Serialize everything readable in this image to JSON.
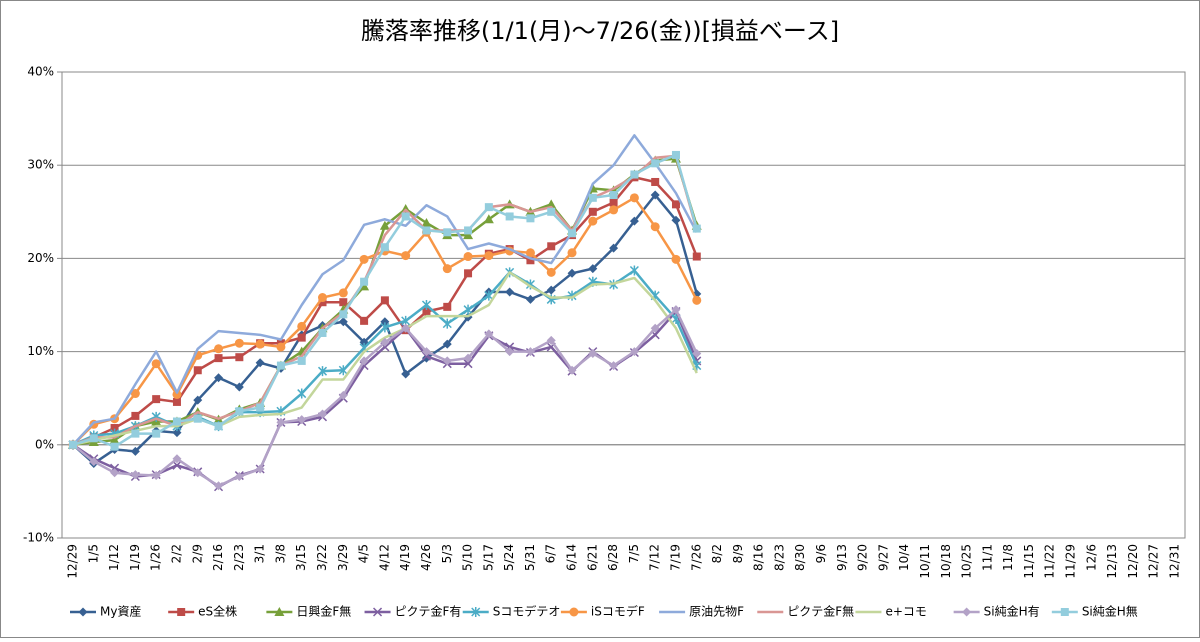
{
  "chart_data": {
    "type": "line",
    "title": "騰落率推移(1/1(月)～7/26(金))[損益ベース]",
    "categories": [
      "12/29",
      "1/5",
      "1/12",
      "1/19",
      "1/26",
      "2/2",
      "2/9",
      "2/16",
      "2/23",
      "3/1",
      "3/8",
      "3/15",
      "3/22",
      "3/29",
      "4/5",
      "4/12",
      "4/19",
      "4/26",
      "5/3",
      "5/10",
      "5/17",
      "5/24",
      "5/31",
      "6/7",
      "6/14",
      "6/21",
      "6/28",
      "7/5",
      "7/12",
      "7/19",
      "7/26",
      "8/2",
      "8/9",
      "8/16",
      "8/23",
      "8/30",
      "9/6",
      "9/13",
      "9/20",
      "9/27",
      "10/4",
      "10/11",
      "10/18",
      "10/25",
      "11/1",
      "11/8",
      "11/15",
      "11/22",
      "11/29",
      "12/6",
      "12/13",
      "12/20",
      "12/27",
      "12/31"
    ],
    "ylim": [
      -10,
      40
    ],
    "yticks": [
      {
        "value": -10,
        "label": "-10%"
      },
      {
        "value": 0,
        "label": "0%"
      },
      {
        "value": 10,
        "label": "10%"
      },
      {
        "value": 20,
        "label": "20%"
      },
      {
        "value": 30,
        "label": "30%"
      },
      {
        "value": 40,
        "label": "40%"
      }
    ],
    "grid": true,
    "legend": "bottom",
    "series": [
      {
        "name": "My資産",
        "color": "#376092",
        "marker": "diamond",
        "values": [
          0,
          -2,
          -0.5,
          -0.7,
          1.5,
          1.3,
          4.8,
          7.2,
          6.2,
          8.8,
          8.2,
          11.8,
          12.8,
          13.2,
          11,
          13.2,
          7.6,
          9.3,
          10.8,
          13.7,
          16.4,
          16.4,
          15.6,
          16.6,
          18.4,
          18.9,
          21.1,
          24,
          26.8,
          24.1,
          16.2,
          null,
          null,
          null,
          null,
          null,
          null,
          null,
          null,
          null,
          null,
          null,
          null,
          null,
          null,
          null,
          null,
          null,
          null,
          null,
          null,
          null,
          null,
          null
        ]
      },
      {
        "name": "eS全株",
        "color": "#be4b48",
        "marker": "square",
        "values": [
          0,
          0.8,
          1.8,
          3.1,
          4.9,
          4.6,
          8,
          9.3,
          9.4,
          10.9,
          10.9,
          11.5,
          15.3,
          15.3,
          13.3,
          15.5,
          12.3,
          14.3,
          14.8,
          18.4,
          20.5,
          21,
          19.8,
          21.3,
          22.5,
          25,
          26,
          28.7,
          28.2,
          25.8,
          20.2,
          null,
          null,
          null,
          null,
          null,
          null,
          null,
          null,
          null,
          null,
          null,
          null,
          null,
          null,
          null,
          null,
          null,
          null,
          null,
          null,
          null,
          null,
          null
        ]
      },
      {
        "name": "日興金F無",
        "color": "#77a03a",
        "marker": "triangle",
        "values": [
          0,
          0.3,
          0.5,
          2,
          2.5,
          2.5,
          3.5,
          2.7,
          3.8,
          4.5,
          8.5,
          10,
          12.5,
          14.5,
          17,
          23.5,
          25.3,
          23.8,
          22.5,
          22.5,
          24.2,
          25.8,
          25,
          25.8,
          23,
          27.5,
          27.3,
          29,
          30.5,
          30.7,
          23.5,
          null,
          null,
          null,
          null,
          null,
          null,
          null,
          null,
          null,
          null,
          null,
          null,
          null,
          null,
          null,
          null,
          null,
          null,
          null,
          null,
          null,
          null,
          null
        ]
      },
      {
        "name": "ピクテ金F有",
        "color": "#7d5fa0",
        "marker": "x",
        "values": [
          0,
          -1.5,
          -2.5,
          -3.4,
          -3.2,
          -2.2,
          -2.9,
          -4.5,
          -3.3,
          -2.6,
          2.4,
          2.5,
          3,
          5,
          8.5,
          10.5,
          12.5,
          9.5,
          8.7,
          8.7,
          11.7,
          10.5,
          9.9,
          10.5,
          7.9,
          10,
          8.4,
          9.9,
          11.8,
          14.3,
          9,
          null,
          null,
          null,
          null,
          null,
          null,
          null,
          null,
          null,
          null,
          null,
          null,
          null,
          null,
          null,
          null,
          null,
          null,
          null,
          null,
          null,
          null,
          null
        ]
      },
      {
        "name": "Sコモデテオ",
        "color": "#4bacc6",
        "marker": "star",
        "values": [
          0,
          1,
          1.2,
          2,
          3,
          2,
          3,
          2,
          3.5,
          3.5,
          3.6,
          5.5,
          7.9,
          8,
          10.4,
          12.6,
          13.3,
          15,
          13,
          14.5,
          16,
          18.5,
          17.2,
          15.6,
          16,
          17.5,
          17.2,
          18.7,
          16,
          13.5,
          8.5,
          null,
          null,
          null,
          null,
          null,
          null,
          null,
          null,
          null,
          null,
          null,
          null,
          null,
          null,
          null,
          null,
          null,
          null,
          null,
          null,
          null,
          null,
          null
        ]
      },
      {
        "name": "iSコモデF",
        "color": "#f79646",
        "marker": "circle",
        "values": [
          0,
          2.2,
          2.8,
          5.5,
          8.7,
          5.4,
          9.6,
          10.3,
          10.9,
          10.8,
          10.5,
          12.7,
          15.8,
          16.3,
          19.9,
          20.8,
          20.3,
          22.8,
          18.9,
          20.2,
          20.3,
          20.8,
          20.6,
          18.5,
          20.6,
          24,
          25.2,
          26.5,
          23.4,
          19.9,
          15.5,
          null,
          null,
          null,
          null,
          null,
          null,
          null,
          null,
          null,
          null,
          null,
          null,
          null,
          null,
          null,
          null,
          null,
          null,
          null,
          null,
          null,
          null,
          null
        ]
      },
      {
        "name": "原油先物F",
        "color": "#8eaadb",
        "marker": "none",
        "values": [
          0,
          2.4,
          2.8,
          6.5,
          10,
          5.6,
          10.3,
          12.2,
          12,
          11.8,
          11.3,
          15,
          18.3,
          19.8,
          23.6,
          24.2,
          23.5,
          25.7,
          24.5,
          21,
          21.6,
          21,
          20,
          19.5,
          22.8,
          28,
          30,
          33.2,
          30.2,
          27,
          22.8,
          null,
          null,
          null,
          null,
          null,
          null,
          null,
          null,
          null,
          null,
          null,
          null,
          null,
          null,
          null,
          null,
          null,
          null,
          null,
          null,
          null,
          null,
          null
        ]
      },
      {
        "name": "ピクテ金F無",
        "color": "#d99694",
        "marker": "none",
        "values": [
          0,
          0.8,
          0.8,
          2,
          2.8,
          2,
          3.5,
          2.8,
          3.6,
          4.5,
          8.5,
          9.5,
          12.5,
          14.2,
          17.5,
          22.5,
          25.2,
          23,
          23,
          23,
          25.5,
          25.8,
          25,
          25.5,
          23,
          26.5,
          27.5,
          28.8,
          30.8,
          31,
          23,
          null,
          null,
          null,
          null,
          null,
          null,
          null,
          null,
          null,
          null,
          null,
          null,
          null,
          null,
          null,
          null,
          null,
          null,
          null,
          null,
          null,
          null,
          null
        ]
      },
      {
        "name": "e+コモ",
        "color": "#c3d69b",
        "marker": "none",
        "values": [
          0,
          0.5,
          1,
          1.5,
          2,
          2,
          2.8,
          2,
          3,
          3.2,
          3.3,
          4,
          7,
          7,
          10,
          11.5,
          12.5,
          13.8,
          13.8,
          13.8,
          15,
          18.5,
          17,
          15.8,
          15.8,
          17.2,
          17.3,
          17.9,
          15.5,
          12.5,
          7.7,
          null,
          null,
          null,
          null,
          null,
          null,
          null,
          null,
          null,
          null,
          null,
          null,
          null,
          null,
          null,
          null,
          null,
          null,
          null,
          null,
          null,
          null,
          null
        ]
      },
      {
        "name": "Si純金H有",
        "color": "#b3a2c7",
        "marker": "diamond",
        "values": [
          0,
          -1.8,
          -3,
          -3.2,
          -3.3,
          -1.5,
          -3,
          -4.4,
          -3.4,
          -2.6,
          2.4,
          2.7,
          3.3,
          5.3,
          9,
          11,
          12.5,
          10,
          9,
          9.3,
          11.9,
          10,
          10,
          11.2,
          8,
          9.8,
          8.5,
          10,
          12.5,
          14.5,
          9.8,
          null,
          null,
          null,
          null,
          null,
          null,
          null,
          null,
          null,
          null,
          null,
          null,
          null,
          null,
          null,
          null,
          null,
          null,
          null,
          null,
          null,
          null,
          null
        ]
      },
      {
        "name": "Si純金H無",
        "color": "#93cddd",
        "marker": "square",
        "values": [
          0,
          0.7,
          -0.2,
          1.2,
          1.2,
          2.5,
          2.8,
          2,
          3.6,
          4,
          8.5,
          9,
          12,
          14,
          17.5,
          21.2,
          24.5,
          23,
          22.8,
          23,
          25.5,
          24.5,
          24.3,
          25,
          22.7,
          26.5,
          26.8,
          29,
          30.2,
          31.1,
          23.2,
          null,
          null,
          null,
          null,
          null,
          null,
          null,
          null,
          null,
          null,
          null,
          null,
          null,
          null,
          null,
          null,
          null,
          null,
          null,
          null,
          null,
          null,
          null
        ]
      }
    ]
  }
}
